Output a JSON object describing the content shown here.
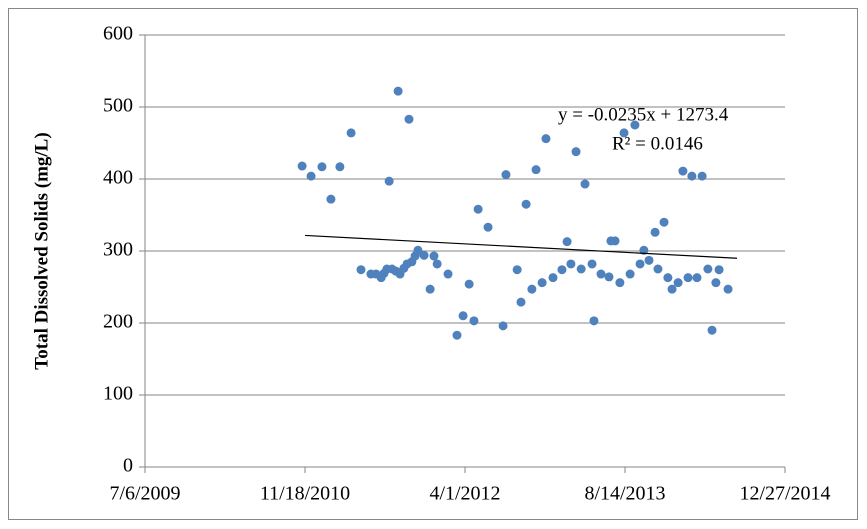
{
  "chart_data": {
    "type": "scatter",
    "y_label": "Total Dissolved Solids (mg/L)",
    "annotations": [
      "y = -0.0235x + 1273.4",
      "R² = 0.0146"
    ],
    "xlim": [
      40000,
      42000
    ],
    "xticks": [
      {
        "value": 40000,
        "label": "7/6/2009"
      },
      {
        "value": 40500,
        "label": "11/18/2010"
      },
      {
        "value": 41000,
        "label": "4/1/2012"
      },
      {
        "value": 41500,
        "label": "8/14/2013"
      },
      {
        "value": 42000,
        "label": "12/27/2014"
      }
    ],
    "ylim": [
      0,
      600
    ],
    "yticks": [
      0,
      100,
      200,
      300,
      400,
      500,
      600
    ],
    "grid": true,
    "series": [
      {
        "color": "#4f81bd",
        "x": [
          40491,
          40519,
          40553,
          40581,
          40609,
          40644,
          40675,
          40706,
          40722,
          40738,
          40747,
          40756,
          40763,
          40772,
          40784,
          40791,
          40797,
          40809,
          40819,
          40825,
          40834,
          40844,
          40853,
          40872,
          40891,
          40903,
          40913,
          40947,
          40975,
          40994,
          41013,
          41028,
          41041,
          41072,
          41119,
          41128,
          41163,
          41175,
          41191,
          41209,
          41222,
          41241,
          41253,
          41275,
          41303,
          41319,
          41331,
          41347,
          41363,
          41375,
          41397,
          41403,
          41425,
          41450,
          41456,
          41469,
          41484,
          41497,
          41516,
          41531,
          41547,
          41559,
          41575,
          41594,
          41603,
          41622,
          41634,
          41647,
          41666,
          41681,
          41697,
          41709,
          41725,
          41741,
          41759,
          41772,
          41784,
          41794,
          41822
        ],
        "values": [
          418,
          404,
          417,
          372,
          417,
          464,
          274,
          268,
          268,
          263,
          269,
          275,
          397,
          275,
          272,
          522,
          268,
          276,
          282,
          483,
          285,
          293,
          301,
          294,
          247,
          293,
          282,
          268,
          183,
          210,
          254,
          203,
          358,
          333,
          196,
          406,
          274,
          229,
          365,
          247,
          413,
          256,
          456,
          263,
          274,
          313,
          282,
          438,
          275,
          393,
          282,
          203,
          268,
          264,
          314,
          314,
          256,
          464,
          268,
          475,
          282,
          301,
          287,
          326,
          275,
          340,
          263,
          247,
          256,
          411,
          263,
          404,
          263,
          404,
          275,
          190,
          256,
          274,
          247
        ]
      }
    ],
    "trendline": {
      "color": "#000000",
      "x": [
        40500,
        41850
      ],
      "values": [
        321.65,
        289.9
      ]
    }
  }
}
